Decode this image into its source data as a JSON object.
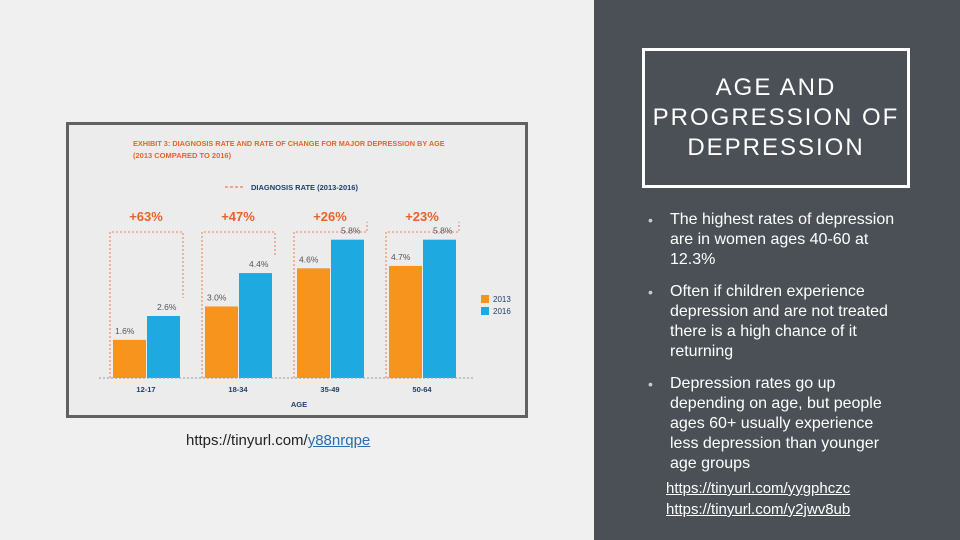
{
  "slide": {
    "title": "AGE AND PROGRESSION OF DEPRESSION",
    "bullets": [
      "The highest rates of depression are in women ages 40-60 at 12.3%",
      "Often if children experience depression and are not treated there is a high chance of it returning",
      "Depression rates go up depending on age, but people ages 60+ usually experience less depression than younger age groups"
    ],
    "bullet_symbol": "•",
    "links": [
      "https://tinyurl.com/yygphczc",
      "https://tinyurl.com/y2jwv8ub"
    ],
    "chart_source": {
      "prefix": "https://tinyurl.com/",
      "link": "y88nrqpe"
    }
  },
  "colors": {
    "right_panel": "#4a5055",
    "series_2013": "#f7941d",
    "series_2016": "#1fa9e1",
    "header_accent": "#e8622c",
    "axis_text": "#1f3f66"
  },
  "chart_data": {
    "type": "bar",
    "title": "EXHIBIT 3: DIAGNOSIS RATE AND RATE OF CHANGE FOR MAJOR DEPRESSION BY AGE",
    "subtitle": "(2013 COMPARED TO 2016)",
    "legend_dashed": "DIAGNOSIS RATE (2013-2016)",
    "xlabel": "AGE",
    "ylabel": "",
    "categories": [
      "12-17",
      "18-34",
      "35-49",
      "50-64"
    ],
    "series": [
      {
        "name": "2013",
        "values": [
          1.6,
          3.0,
          4.6,
          4.7
        ],
        "labels": [
          "1.6%",
          "3.0%",
          "4.6%",
          "4.7%"
        ]
      },
      {
        "name": "2016",
        "values": [
          2.6,
          4.4,
          5.8,
          5.8
        ],
        "labels": [
          "2.6%",
          "4.4%",
          "5.8%",
          "5.8%"
        ]
      }
    ],
    "change_labels": [
      "+63%",
      "+47%",
      "+26%",
      "+23%"
    ],
    "ylim": [
      0,
      6.5
    ],
    "grid": false,
    "legend_position": "right"
  }
}
